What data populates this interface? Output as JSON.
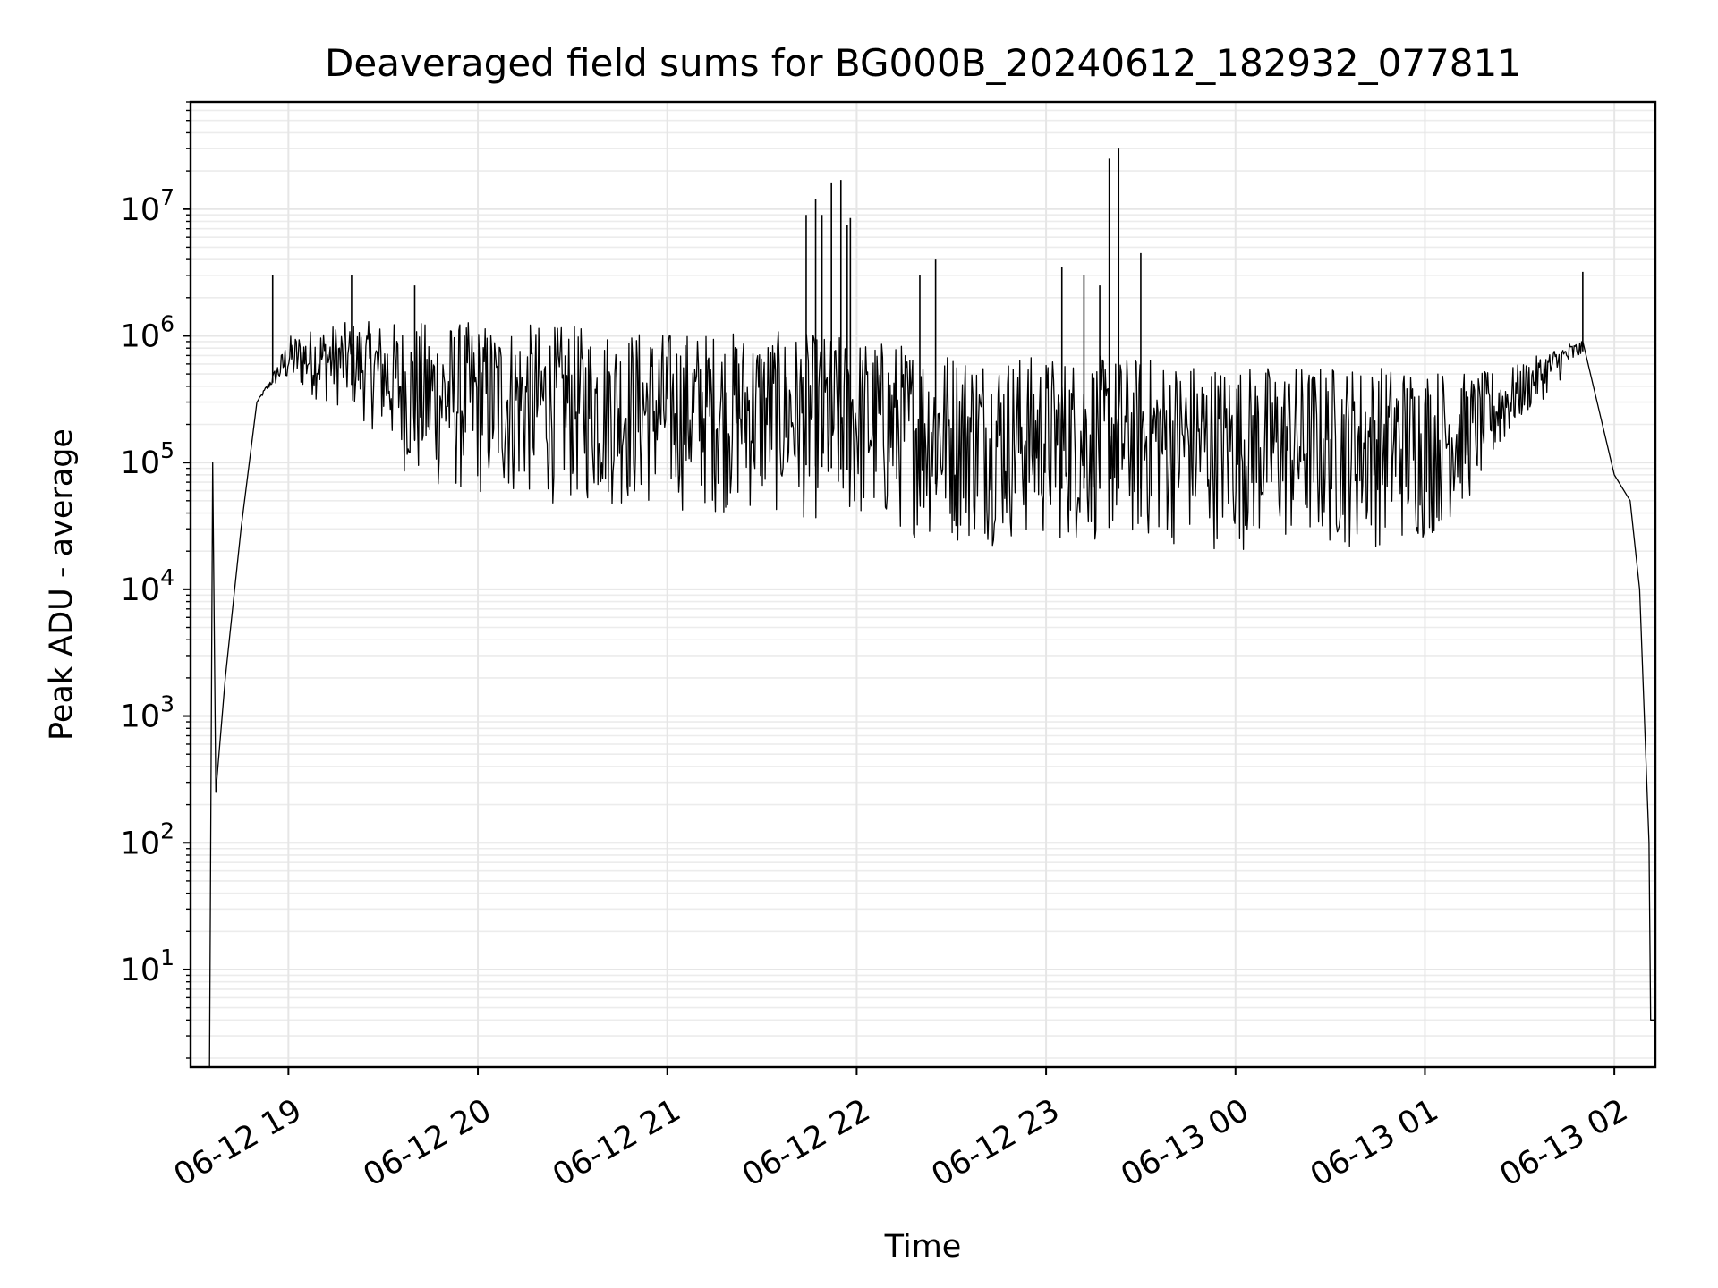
{
  "chart_data": {
    "type": "line",
    "title": "Deaveraged field sums for BG000B_20240612_182932_077811",
    "xlabel": "Time",
    "ylabel": "Peak ADU - average",
    "yscale": "log",
    "ylim": [
      1.7,
      70000000
    ],
    "xlim": [
      "2024-06-12T18:29",
      "2024-06-13T02:13"
    ],
    "grid": true,
    "line_color": "#000000",
    "grid_color": "#e6e6e6",
    "x_ticks": [
      {
        "value": "2024-06-12T19:00",
        "label": "06-12 19"
      },
      {
        "value": "2024-06-12T20:00",
        "label": "06-12 20"
      },
      {
        "value": "2024-06-12T21:00",
        "label": "06-12 21"
      },
      {
        "value": "2024-06-12T22:00",
        "label": "06-12 22"
      },
      {
        "value": "2024-06-12T23:00",
        "label": "06-12 23"
      },
      {
        "value": "2024-06-13T00:00",
        "label": "06-13 00"
      },
      {
        "value": "2024-06-13T01:00",
        "label": "06-13 01"
      },
      {
        "value": "2024-06-13T02:00",
        "label": "06-13 02"
      }
    ],
    "y_ticks": [
      {
        "value": 10,
        "base": "10",
        "exp": "1"
      },
      {
        "value": 100,
        "base": "10",
        "exp": "2"
      },
      {
        "value": 1000,
        "base": "10",
        "exp": "3"
      },
      {
        "value": 10000,
        "base": "10",
        "exp": "4"
      },
      {
        "value": 100000,
        "base": "10",
        "exp": "5"
      },
      {
        "value": 1000000,
        "base": "10",
        "exp": "6"
      },
      {
        "value": 10000000,
        "base": "10",
        "exp": "7"
      }
    ],
    "envelope": [
      {
        "t": "2024-06-12T18:35",
        "low": 1.7,
        "high": 1.7
      },
      {
        "t": "2024-06-12T18:36",
        "low": 50000,
        "high": 100000
      },
      {
        "t": "2024-06-12T18:37",
        "low": 250,
        "high": 250
      },
      {
        "t": "2024-06-12T18:40",
        "low": 2000,
        "high": 2000
      },
      {
        "t": "2024-06-12T18:45",
        "low": 30000,
        "high": 30000
      },
      {
        "t": "2024-06-12T18:50",
        "low": 300000,
        "high": 300000
      },
      {
        "t": "2024-06-12T18:55",
        "low": 400000,
        "high": 500000
      },
      {
        "t": "2024-06-12T19:00",
        "low": 400000,
        "high": 1000000
      },
      {
        "t": "2024-06-12T19:10",
        "low": 300000,
        "high": 1200000
      },
      {
        "t": "2024-06-12T19:20",
        "low": 250000,
        "high": 1300000
      },
      {
        "t": "2024-06-12T19:30",
        "low": 150000,
        "high": 1300000
      },
      {
        "t": "2024-06-12T19:40",
        "low": 60000,
        "high": 1300000
      },
      {
        "t": "2024-06-12T20:00",
        "low": 50000,
        "high": 1300000
      },
      {
        "t": "2024-06-12T20:30",
        "low": 45000,
        "high": 1200000
      },
      {
        "t": "2024-06-12T21:00",
        "low": 40000,
        "high": 1100000
      },
      {
        "t": "2024-06-12T21:30",
        "low": 38000,
        "high": 1100000
      },
      {
        "t": "2024-06-12T22:00",
        "low": 30000,
        "high": 1000000
      },
      {
        "t": "2024-06-12T22:30",
        "low": 22000,
        "high": 800000
      },
      {
        "t": "2024-06-12T23:00",
        "low": 22000,
        "high": 700000
      },
      {
        "t": "2024-06-12T23:30",
        "low": 22000,
        "high": 700000
      },
      {
        "t": "2024-06-13T00:00",
        "low": 20000,
        "high": 600000
      },
      {
        "t": "2024-06-13T00:30",
        "low": 20000,
        "high": 600000
      },
      {
        "t": "2024-06-13T01:00",
        "low": 22000,
        "high": 600000
      },
      {
        "t": "2024-06-13T01:15",
        "low": 50000,
        "high": 500000
      },
      {
        "t": "2024-06-13T01:30",
        "low": 200000,
        "high": 600000
      },
      {
        "t": "2024-06-13T01:45",
        "low": 500000,
        "high": 900000
      },
      {
        "t": "2024-06-13T01:50",
        "low": 700000,
        "high": 900000
      },
      {
        "t": "2024-06-13T02:00",
        "low": 80000,
        "high": 80000
      },
      {
        "t": "2024-06-13T02:05",
        "low": 50000,
        "high": 50000
      },
      {
        "t": "2024-06-13T02:08",
        "low": 10000,
        "high": 10000
      },
      {
        "t": "2024-06-13T02:11",
        "low": 100,
        "high": 100
      },
      {
        "t": "2024-06-13T02:11:30",
        "low": 4,
        "high": 4
      },
      {
        "t": "2024-06-13T02:13",
        "low": 4,
        "high": 4
      }
    ],
    "spikes": [
      {
        "t": "2024-06-12T18:55",
        "value": 3000000
      },
      {
        "t": "2024-06-12T19:20",
        "value": 3000000
      },
      {
        "t": "2024-06-12T19:40",
        "value": 2500000
      },
      {
        "t": "2024-06-12T21:44",
        "value": 9000000
      },
      {
        "t": "2024-06-12T21:47",
        "value": 12000000
      },
      {
        "t": "2024-06-12T21:49",
        "value": 9000000
      },
      {
        "t": "2024-06-12T21:52",
        "value": 16000000
      },
      {
        "t": "2024-06-12T21:55",
        "value": 17000000
      },
      {
        "t": "2024-06-12T21:57",
        "value": 7500000
      },
      {
        "t": "2024-06-12T21:58",
        "value": 8500000
      },
      {
        "t": "2024-06-12T22:20",
        "value": 3000000
      },
      {
        "t": "2024-06-12T22:25",
        "value": 4000000
      },
      {
        "t": "2024-06-12T23:05",
        "value": 3500000
      },
      {
        "t": "2024-06-12T23:12",
        "value": 3000000
      },
      {
        "t": "2024-06-12T23:17",
        "value": 2500000
      },
      {
        "t": "2024-06-12T23:20",
        "value": 25000000
      },
      {
        "t": "2024-06-12T23:23",
        "value": 30000000
      },
      {
        "t": "2024-06-12T23:30",
        "value": 4500000
      },
      {
        "t": "2024-06-13T01:50",
        "value": 3200000
      }
    ]
  }
}
